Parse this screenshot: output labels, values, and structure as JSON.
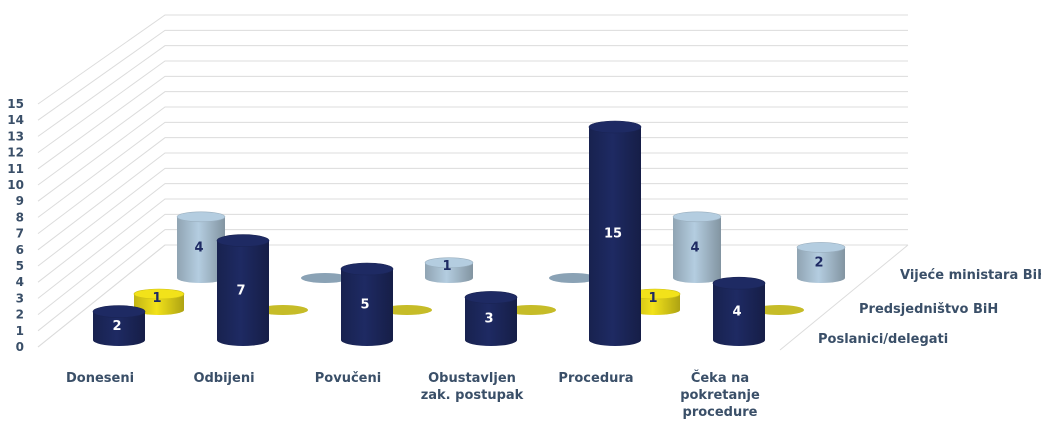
{
  "chart_data": {
    "type": "bar",
    "categories": [
      [
        "Doneseni"
      ],
      [
        "Odbijeni"
      ],
      [
        "Povučeni"
      ],
      [
        "Obustavljen",
        "zak. postupak"
      ],
      [
        "Procedura"
      ],
      [
        "Čeka na",
        "pokretanje",
        "procedure"
      ]
    ],
    "series": [
      {
        "name": "Poslanici/delegati",
        "values": [
          2,
          7,
          5,
          3,
          15,
          4
        ]
      },
      {
        "name": "Predsjedništvo BiH",
        "values": [
          1,
          0,
          0,
          0,
          1,
          0
        ]
      },
      {
        "name": "Vijeće ministara BiH",
        "values": [
          4,
          0,
          1,
          0,
          4,
          2
        ]
      }
    ],
    "ylim": [
      0,
      15
    ],
    "yticks": [
      0,
      1,
      2,
      3,
      4,
      5,
      6,
      7,
      8,
      9,
      10,
      11,
      12,
      13,
      14,
      15
    ],
    "grid": true,
    "data_labels": true,
    "colors": [
      "#1e2a63",
      "#f2e21a",
      "#b4cde0"
    ]
  }
}
